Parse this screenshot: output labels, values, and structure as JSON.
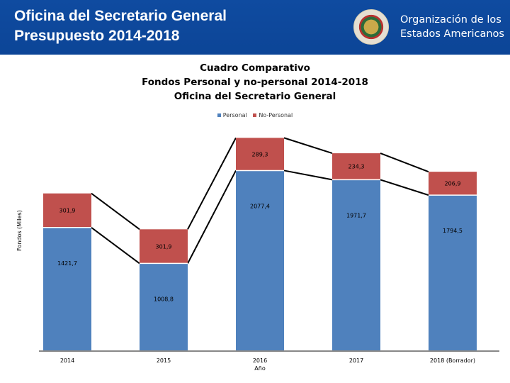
{
  "header": {
    "title_line1": "Oficina del Secretario General",
    "title_line2": "Presupuesto 2014-2018",
    "org_name_line1": "Organización de los",
    "org_name_line2": "Estados Americanos",
    "logo_icon": "oas-seal-icon"
  },
  "colors": {
    "header_bg": "#0d47a1",
    "personal": "#4f81bd",
    "no_personal": "#c0504d",
    "axis": "#888888",
    "connector": "#000000"
  },
  "chart_data": {
    "type": "bar",
    "stacked": true,
    "title": [
      "Cuadro Comparativo",
      "Fondos Personal y no-personal 2014-2018",
      "Oficina del Secretario General"
    ],
    "xlabel": "Año",
    "ylabel": "Fondos (Miles)",
    "legend": [
      "Personal",
      "No-Personal"
    ],
    "legend_position": "top",
    "categories": [
      "2014",
      "2015",
      "2016",
      "2017",
      "2018 (Borrador)"
    ],
    "series": [
      {
        "name": "Personal",
        "values": [
          1421.7,
          1008.8,
          2077.4,
          1971.7,
          1794.5
        ],
        "labels": [
          "1421,7",
          "1008,8",
          "2077,4",
          "1971,7",
          "1794,5"
        ]
      },
      {
        "name": "No-Personal",
        "values": [
          301.9,
          301.9,
          289.3,
          234.3,
          206.9
        ],
        "labels": [
          "301,9",
          "301,9",
          "289,3",
          "234,3",
          "206,9"
        ]
      }
    ],
    "grid": false,
    "series_lines": true
  }
}
